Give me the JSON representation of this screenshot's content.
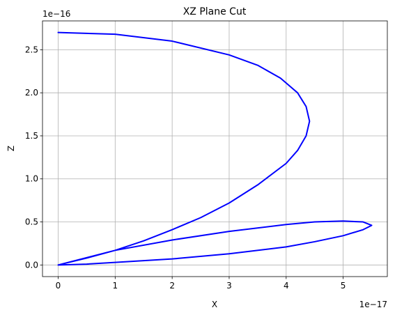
{
  "chart_data": {
    "type": "line",
    "title": "XZ Plane Cut",
    "xlabel": "X",
    "ylabel": "Z",
    "x_offset_text": "1e−17",
    "y_offset_text": "1e−16",
    "x_unit_scale": 1e-17,
    "y_unit_scale": 1e-16,
    "xlim": [
      -0.275,
      5.775
    ],
    "ylim": [
      -0.135,
      2.835
    ],
    "x_ticks": [
      0,
      1,
      2,
      3,
      4,
      5
    ],
    "y_ticks": [
      0.0,
      0.5,
      1.0,
      1.5,
      2.0,
      2.5
    ],
    "x_tick_labels": [
      "0",
      "1",
      "2",
      "3",
      "4",
      "5"
    ],
    "y_tick_labels": [
      "0.0",
      "0.5",
      "1.0",
      "1.5",
      "2.0",
      "2.5"
    ],
    "grid": true,
    "line_color": "#0000ff",
    "series": [
      {
        "x": [
          0.0,
          1.0,
          2.0,
          3.0,
          3.5,
          3.9,
          4.2,
          4.35,
          4.41,
          4.35,
          4.2,
          4.0,
          3.5,
          3.0,
          2.5,
          2.0,
          1.5,
          1.0,
          0.5,
          0.0,
          1.0,
          2.0,
          3.0,
          4.0,
          4.5,
          5.0,
          5.35,
          5.5,
          5.35,
          5.0,
          4.5,
          4.0,
          3.0,
          2.0,
          1.0,
          0.5,
          0.0
        ],
        "y": [
          2.7,
          2.68,
          2.6,
          2.44,
          2.32,
          2.17,
          2.0,
          1.84,
          1.67,
          1.5,
          1.33,
          1.18,
          0.93,
          0.72,
          0.55,
          0.41,
          0.28,
          0.17,
          0.08,
          0.0,
          0.17,
          0.29,
          0.39,
          0.47,
          0.5,
          0.51,
          0.5,
          0.46,
          0.41,
          0.34,
          0.27,
          0.21,
          0.13,
          0.07,
          0.03,
          0.01,
          0.0
        ]
      }
    ]
  }
}
